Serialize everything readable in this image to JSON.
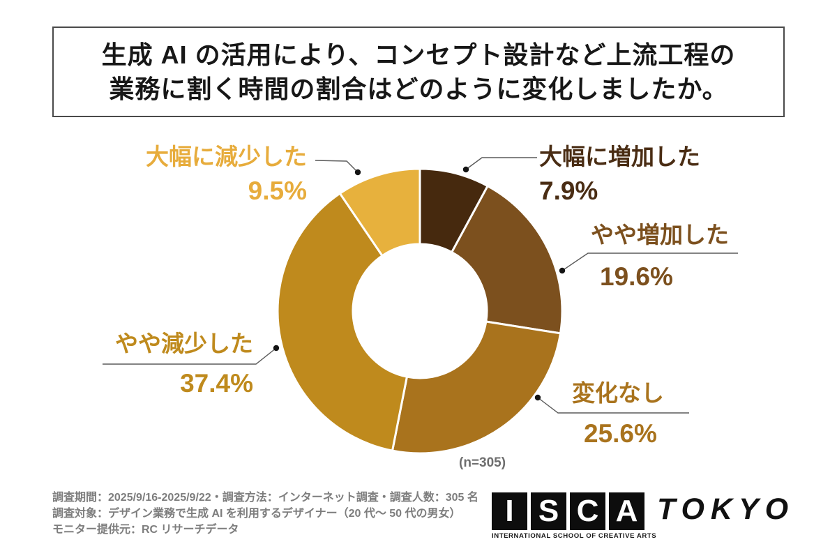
{
  "title": {
    "line1": "生成 AI の活用により、コンセプト設計など上流工程の",
    "line2": "業務に割く時間の割合はどのように変化しましたか。"
  },
  "chart_data": {
    "type": "pie",
    "subtype": "donut",
    "title": "生成AIの活用により、コンセプト設計など上流工程の業務に割く時間の割合はどのように変化しましたか。",
    "unit": "%",
    "sample_note": "(n=305)",
    "start_angle_deg": 0,
    "direction": "clockwise_from_top",
    "segments": [
      {
        "label": "大幅に増加した",
        "value": 7.9,
        "pct_text": "7.9%",
        "color": "#46290E",
        "label_color": "#4A2D14"
      },
      {
        "label": "やや増加した",
        "value": 19.6,
        "pct_text": "19.6%",
        "color": "#7C501E",
        "label_color": "#7C501E"
      },
      {
        "label": "変化なし",
        "value": 25.6,
        "pct_text": "25.6%",
        "color": "#A9731D",
        "label_color": "#A9731D"
      },
      {
        "label": "やや減少した",
        "value": 37.4,
        "pct_text": "37.4%",
        "color": "#BF8A1D",
        "label_color": "#BF8A1D"
      },
      {
        "label": "大幅に減少した",
        "value": 9.5,
        "pct_text": "9.5%",
        "color": "#E7B13D",
        "label_color": "#E7AC3C"
      }
    ]
  },
  "footnotes": {
    "line1": "調査期間：2025/9/16-2025/9/22・調査方法：インターネット調査・調査人数：305 名",
    "line2": "調査対象：デザイン業務で生成 AI を利用するデザイナー（20 代〜 50 代の男女）",
    "line3": "モニター提供元：RC リサーチデータ"
  },
  "logo": {
    "letters": [
      "I",
      "S",
      "C",
      "A"
    ],
    "subtext": "INTERNATIONAL SCHOOL OF CREATIVE ARTS",
    "wordmark": "TOKYO"
  }
}
